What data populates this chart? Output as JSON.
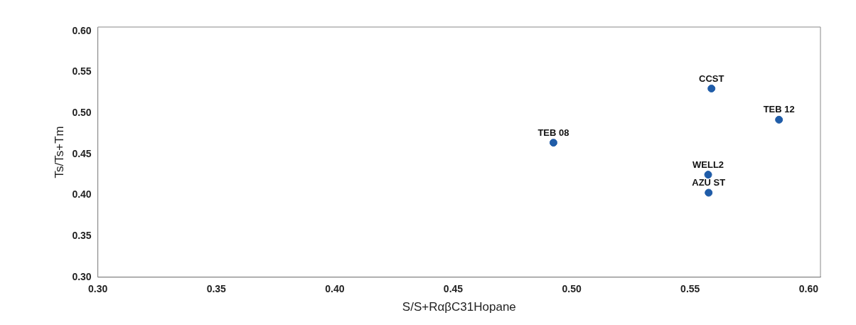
{
  "chart_data": {
    "type": "scatter",
    "xlabel": "S/S+RαβC31Hopane",
    "ylabel": "Ts/Ts+Tm",
    "series": [
      {
        "color": "#1f5ca8",
        "x": [
          0.559,
          0.5875,
          0.4923,
          0.5576,
          0.5578
        ],
        "values": [
          0.53,
          0.492,
          0.464,
          0.425,
          0.403
        ]
      }
    ],
    "annotations": [
      {
        "text": "CCST",
        "x": 0.559,
        "y": 0.53
      },
      {
        "text": "TEB 12",
        "x": 0.5875,
        "y": 0.492
      },
      {
        "text": "TEB 08",
        "x": 0.4923,
        "y": 0.464
      },
      {
        "text": "WELL2",
        "x": 0.5576,
        "y": 0.425
      },
      {
        "text": "AZU ST",
        "x": 0.5578,
        "y": 0.403
      }
    ],
    "xlim": [
      0.3,
      0.605
    ],
    "xticks": [
      {
        "value": 0.3,
        "label": "0.30"
      },
      {
        "value": 0.35,
        "label": "0.35"
      },
      {
        "value": 0.4,
        "label": "0.40"
      },
      {
        "value": 0.45,
        "label": "0.45"
      },
      {
        "value": 0.5,
        "label": "0.50"
      },
      {
        "value": 0.55,
        "label": "0.55"
      },
      {
        "value": 0.6,
        "label": "0.60"
      }
    ],
    "ylim": [
      0.3,
      0.605
    ],
    "yticks": [
      {
        "value": 0.3,
        "label": "0.30"
      },
      {
        "value": 0.35,
        "label": "0.35"
      },
      {
        "value": 0.4,
        "label": "0.40"
      },
      {
        "value": 0.45,
        "label": "0.45"
      },
      {
        "value": 0.5,
        "label": "0.50"
      },
      {
        "value": 0.55,
        "label": "0.55"
      },
      {
        "value": 0.6,
        "label": "0.60"
      }
    ],
    "grid": false,
    "legend": false,
    "marker": "circle"
  }
}
